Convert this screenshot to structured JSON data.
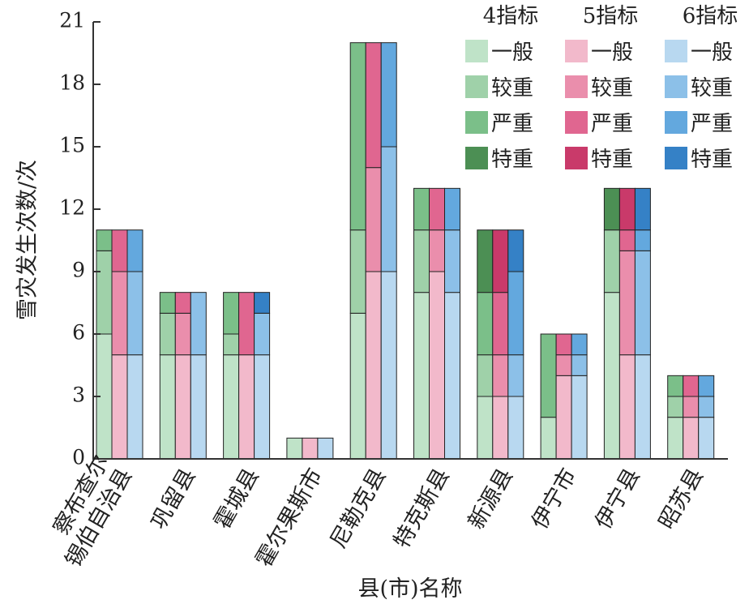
{
  "chart_data": {
    "type": "bar",
    "stacked": true,
    "xlabel": "县(市)名称",
    "ylabel": "雪灾发生次数/次",
    "ylim": [
      0,
      21
    ],
    "yticks": [
      "0",
      "3",
      "6",
      "9",
      "12",
      "15",
      "18",
      "21"
    ],
    "categories": [
      [
        "察布查尔",
        "锡伯自治县"
      ],
      [
        "巩留县"
      ],
      [
        "霍城县"
      ],
      [
        "霍尔果斯市"
      ],
      [
        "尼勒克县"
      ],
      [
        "特克斯县"
      ],
      [
        "新源县"
      ],
      [
        "伊宁市"
      ],
      [
        "伊宁县"
      ],
      [
        "昭苏县"
      ]
    ],
    "levels": [
      "一般",
      "较重",
      "严重",
      "特重"
    ],
    "groups": [
      {
        "name": "4指标",
        "colors": [
          "#bfe3c8",
          "#9fd1a9",
          "#7bbf89",
          "#4c8f54"
        ],
        "values": [
          [
            6,
            4,
            1,
            0
          ],
          [
            5,
            2,
            1,
            0
          ],
          [
            5,
            1,
            2,
            0
          ],
          [
            1,
            0,
            0,
            0
          ],
          [
            7,
            4,
            9,
            0
          ],
          [
            8,
            3,
            2,
            0
          ],
          [
            3,
            2,
            3,
            3
          ],
          [
            2,
            0,
            4,
            0
          ],
          [
            8,
            3,
            0,
            2
          ],
          [
            2,
            1,
            1,
            0
          ]
        ]
      },
      {
        "name": "5指标",
        "colors": [
          "#f2b9cb",
          "#ea8eac",
          "#e06690",
          "#c93a6a"
        ],
        "values": [
          [
            5,
            4,
            2,
            0
          ],
          [
            5,
            2,
            1,
            0
          ],
          [
            5,
            0,
            3,
            0
          ],
          [
            1,
            0,
            0,
            0
          ],
          [
            9,
            5,
            6,
            0
          ],
          [
            9,
            2,
            2,
            0
          ],
          [
            3,
            2,
            3,
            3
          ],
          [
            4,
            1,
            1,
            0
          ],
          [
            5,
            5,
            1,
            2
          ],
          [
            2,
            1,
            1,
            0
          ]
        ]
      },
      {
        "name": "6指标",
        "colors": [
          "#b8d8f0",
          "#8cc0e8",
          "#63a8de",
          "#3581c6"
        ],
        "values": [
          [
            5,
            4,
            2,
            0
          ],
          [
            5,
            3,
            0,
            0
          ],
          [
            5,
            2,
            0,
            1
          ],
          [
            1,
            0,
            0,
            0
          ],
          [
            9,
            6,
            5,
            0
          ],
          [
            8,
            3,
            2,
            0
          ],
          [
            3,
            2,
            4,
            2
          ],
          [
            4,
            1,
            1,
            0
          ],
          [
            5,
            5,
            1,
            2
          ],
          [
            2,
            1,
            1,
            0
          ]
        ]
      }
    ],
    "legend_position": "top-right"
  }
}
